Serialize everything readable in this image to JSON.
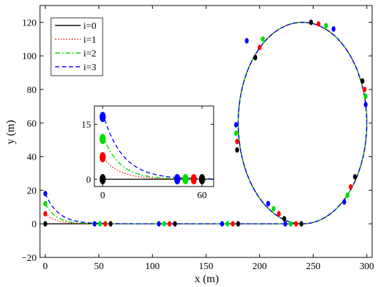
{
  "chart_data": {
    "type": "line",
    "title": "",
    "xlabel": "x (m)",
    "ylabel": "y (m)",
    "xlim": [
      -5,
      305
    ],
    "ylim": [
      -20,
      130
    ],
    "xticks": [
      0,
      50,
      100,
      150,
      200,
      250,
      300
    ],
    "yticks": [
      -20,
      0,
      20,
      40,
      60,
      80,
      100,
      120
    ],
    "x_tick_labels": [
      "0",
      "50",
      "100",
      "150",
      "200",
      "250",
      "300"
    ],
    "y_tick_labels": [
      "−20",
      "0",
      "20",
      "40",
      "60",
      "80",
      "100",
      "120"
    ],
    "grid": false,
    "legend_position": "top-left",
    "track": {
      "straight": {
        "x_start": 0,
        "x_end": 240,
        "y": 0
      },
      "loop": {
        "center_x": 240,
        "center_y": 60,
        "radius_x": 60,
        "radius_y": 60
      }
    },
    "series": [
      {
        "name": "i=0",
        "color": "#000000",
        "style": "solid",
        "start_y": 0,
        "decay": 1
      },
      {
        "name": "i=1",
        "color": "#ff0000",
        "style": "dotted",
        "start_y": 6,
        "decay": 10
      },
      {
        "name": "i=2",
        "color": "#00dd00",
        "style": "dashdot",
        "start_y": 12,
        "decay": 10
      },
      {
        "name": "i=3",
        "color": "#0000ff",
        "style": "dashed",
        "start_y": 18,
        "decay": 12
      }
    ],
    "markers": {
      "i=0": [
        [
          0,
          0
        ],
        [
          61,
          0
        ],
        [
          121,
          0
        ],
        [
          180,
          0
        ],
        [
          223,
          3
        ],
        [
          239,
          0
        ],
        [
          196,
          99
        ],
        [
          248,
          120
        ],
        [
          296,
          85
        ],
        [
          289,
          28
        ],
        [
          179,
          44
        ]
      ],
      "i=1": [
        [
          0,
          6
        ],
        [
          56,
          0
        ],
        [
          116,
          0
        ],
        [
          175,
          0
        ],
        [
          218,
          6
        ],
        [
          234,
          0
        ],
        [
          200,
          105
        ],
        [
          255,
          119
        ],
        [
          298,
          80
        ],
        [
          285,
          22
        ],
        [
          179,
          49
        ]
      ],
      "i=2": [
        [
          0,
          12
        ],
        [
          51,
          0
        ],
        [
          111,
          0
        ],
        [
          170,
          0
        ],
        [
          213,
          9
        ],
        [
          229,
          0
        ],
        [
          203,
          110
        ],
        [
          262,
          118
        ],
        [
          299,
          76
        ],
        [
          282,
          17
        ],
        [
          178,
          54
        ]
      ],
      "i=3": [
        [
          0,
          18
        ],
        [
          46,
          0
        ],
        [
          106,
          0
        ],
        [
          165,
          0
        ],
        [
          208,
          12
        ],
        [
          224,
          0
        ],
        [
          188,
          109
        ],
        [
          269,
          116
        ],
        [
          299,
          71
        ],
        [
          279,
          13
        ],
        [
          178,
          59
        ]
      ]
    },
    "inset": {
      "xlim": [
        -5,
        67
      ],
      "ylim": [
        -2,
        20
      ],
      "xticks": [
        0,
        60
      ],
      "yticks": [
        0,
        15
      ],
      "x_tick_labels": [
        "0",
        "60"
      ],
      "y_tick_labels": [
        "0",
        "15"
      ],
      "markers": {
        "i=0": [
          [
            0,
            0
          ],
          [
            60,
            0
          ]
        ],
        "i=1": [
          [
            0,
            6
          ],
          [
            55,
            0
          ]
        ],
        "i=2": [
          [
            0,
            11
          ],
          [
            50,
            0
          ]
        ],
        "i=3": [
          [
            0,
            17
          ],
          [
            45,
            0
          ]
        ]
      }
    }
  }
}
